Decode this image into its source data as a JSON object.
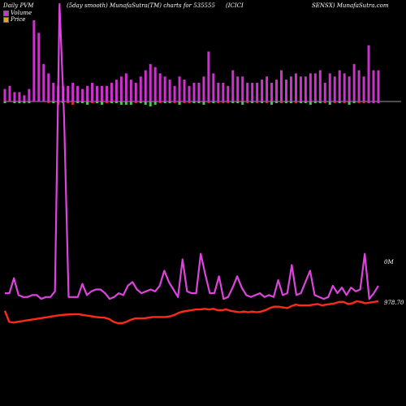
{
  "header": {
    "left": "Daily PVM",
    "mid": "(5day smooth) MunafaSutra(TM) charts for 535555",
    "code": "(ICICI",
    "right": "SENSX) MunafaSutra.com"
  },
  "legend": [
    {
      "label": "Volume",
      "color": "#cc33cc"
    },
    {
      "label": "Price",
      "color": "#f0a020"
    }
  ],
  "chart_data": {
    "type": "bar+line",
    "axis_labels": {
      "volume": "0M",
      "price": "978.70"
    },
    "volume_bars": {
      "up_color": "#cc33cc",
      "down_color_green": "#44cc44",
      "down_color_red": "#e03030",
      "values": [
        4,
        5,
        3,
        3,
        2,
        4,
        26,
        22,
        12,
        9,
        6,
        5,
        5,
        5,
        6,
        5,
        4,
        5,
        6,
        5,
        5,
        5,
        6,
        7,
        8,
        9,
        7,
        6,
        8,
        10,
        12,
        11,
        9,
        8,
        7,
        5,
        8,
        7,
        5,
        6,
        6,
        8,
        16,
        9,
        6,
        6,
        5,
        10,
        8,
        8,
        6,
        6,
        6,
        7,
        8,
        6,
        7,
        10,
        7,
        8,
        9,
        8,
        8,
        9,
        9,
        10,
        6,
        9,
        8,
        10,
        9,
        8,
        12,
        10,
        8,
        18,
        10,
        10
      ],
      "below": [
        1,
        0,
        1,
        1,
        1,
        1,
        0,
        0,
        0,
        1,
        1,
        2,
        1,
        1,
        2,
        1,
        1,
        2,
        1,
        1,
        2,
        1,
        1,
        1,
        2,
        2,
        2,
        1,
        1,
        2,
        3,
        2,
        1,
        1,
        1,
        1,
        2,
        1,
        1,
        1,
        1,
        2,
        1,
        1,
        1,
        1,
        1,
        1,
        1,
        2,
        1,
        1,
        1,
        1,
        1,
        2,
        1,
        1,
        1,
        1,
        1,
        1,
        1,
        2,
        1,
        1,
        1,
        2,
        1,
        1,
        1,
        2,
        1,
        1,
        1,
        1,
        1,
        1
      ],
      "below_colors": [
        "g",
        "g",
        "g",
        "g",
        "g",
        "g",
        "m",
        "m",
        "m",
        "r",
        "g",
        "r",
        "g",
        "r",
        "r",
        "g",
        "g",
        "g",
        "r",
        "g",
        "g",
        "r",
        "g",
        "g",
        "g",
        "g",
        "g",
        "r",
        "g",
        "g",
        "g",
        "g",
        "r",
        "g",
        "g",
        "r",
        "g",
        "r",
        "r",
        "g",
        "g",
        "g",
        "r",
        "g",
        "r",
        "r",
        "r",
        "g",
        "g",
        "g",
        "r",
        "g",
        "r",
        "g",
        "r",
        "g",
        "g",
        "r",
        "g",
        "g",
        "r",
        "g",
        "g",
        "g",
        "g",
        "g",
        "r",
        "g",
        "r",
        "g",
        "r",
        "g",
        "g",
        "r",
        "r",
        "m",
        "m",
        "m"
      ],
      "relative_scale": true
    },
    "volume_line": {
      "color": "#dd44dd",
      "values": [
        6,
        6,
        14,
        5,
        4,
        4,
        5,
        5,
        3,
        4,
        4,
        7,
        160,
        100,
        4,
        4,
        4,
        11,
        5,
        7,
        8,
        8,
        6,
        3,
        4,
        6,
        5,
        10,
        12,
        8,
        6,
        7,
        8,
        7,
        10,
        18,
        12,
        8,
        4,
        24,
        7,
        6,
        6,
        27,
        16,
        6,
        6,
        15,
        3,
        4,
        9,
        15,
        9,
        5,
        4,
        5,
        6,
        4,
        5,
        4,
        13,
        5,
        6,
        21,
        5,
        6,
        12,
        18,
        5,
        4,
        3,
        4,
        10,
        6,
        9,
        5,
        9,
        7,
        8,
        27,
        3,
        6,
        10
      ]
    },
    "price_line": {
      "color": "#ff2a1a",
      "values": [
        978.9,
        978.1,
        978.05,
        978.1,
        978.15,
        978.2,
        978.25,
        978.3,
        978.35,
        978.4,
        978.45,
        978.5,
        978.55,
        978.6,
        978.62,
        978.64,
        978.65,
        978.66,
        978.6,
        978.55,
        978.5,
        978.45,
        978.42,
        978.4,
        978.3,
        978.1,
        978.0,
        978.0,
        978.1,
        978.25,
        978.35,
        978.35,
        978.35,
        978.4,
        978.45,
        978.45,
        978.45,
        978.45,
        978.5,
        978.6,
        978.75,
        978.85,
        978.9,
        978.95,
        979.0,
        979.0,
        979.05,
        979.0,
        979.05,
        978.95,
        978.95,
        979.0,
        978.9,
        978.85,
        978.8,
        978.85,
        978.8,
        978.85,
        978.8,
        978.85,
        978.95,
        979.1,
        979.2,
        979.2,
        979.15,
        979.1,
        979.25,
        979.35,
        979.3,
        979.3,
        979.3,
        979.35,
        979.4,
        979.3,
        979.35,
        979.4,
        979.45,
        979.55,
        979.55,
        979.4,
        979.45,
        979.6,
        979.55,
        979.45,
        979.5,
        979.55,
        979.6
      ]
    }
  }
}
